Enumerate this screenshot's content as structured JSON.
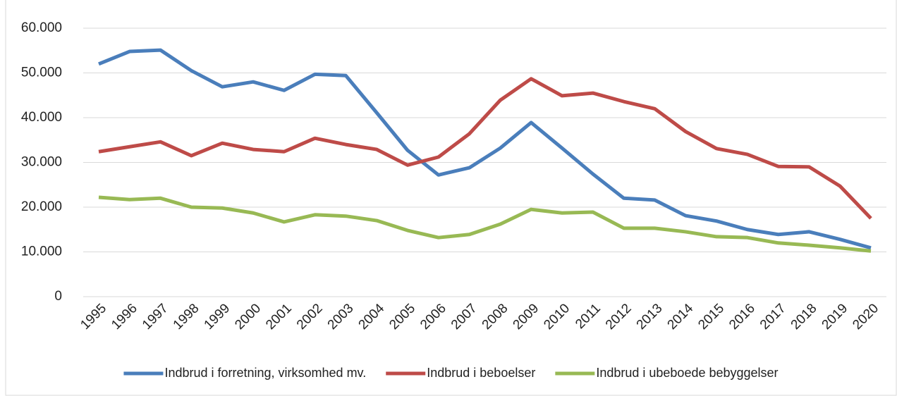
{
  "chart_data": {
    "type": "line",
    "x": [
      "1995",
      "1996",
      "1997",
      "1998",
      "1999",
      "2000",
      "2001",
      "2002",
      "2003",
      "2004",
      "2005",
      "2006",
      "2007",
      "2008",
      "2009",
      "2010",
      "2011",
      "2012",
      "2013",
      "2014",
      "2015",
      "2016",
      "2017",
      "2018",
      "2019",
      "2020"
    ],
    "series": [
      {
        "name": "Indbrud i forretning, virksomhed mv.",
        "color": "#4a7ebb",
        "values": [
          52000,
          54800,
          55100,
          50500,
          46900,
          48000,
          46100,
          49700,
          49400,
          41100,
          32700,
          27200,
          28800,
          33200,
          38900,
          33200,
          27400,
          22000,
          21600,
          18100,
          16900,
          15000,
          13900,
          14500,
          12800,
          10900
        ]
      },
      {
        "name": "Indbrud i beboelser",
        "color": "#be4b48",
        "values": [
          32400,
          33500,
          34600,
          31500,
          34300,
          32900,
          32400,
          35400,
          34000,
          32900,
          29400,
          31200,
          36400,
          43900,
          48700,
          44900,
          45500,
          43600,
          42000,
          36900,
          33100,
          31800,
          29100,
          29000,
          24700,
          17500
        ]
      },
      {
        "name": "Indbrud i ubeboede bebyggelser",
        "color": "#98b954",
        "values": [
          22200,
          21700,
          22000,
          20000,
          19800,
          18700,
          16700,
          18300,
          18000,
          17000,
          14800,
          13200,
          13900,
          16200,
          19500,
          18700,
          18900,
          15300,
          15300,
          14500,
          13400,
          13200,
          12000,
          11500,
          10900,
          10200
        ]
      }
    ],
    "ylim": [
      0,
      60000
    ],
    "yticks": [
      0,
      {
        "value": 10000,
        "label": "10.000"
      },
      {
        "value": 20000,
        "label": "20.000"
      },
      {
        "value": 30000,
        "label": "30.000"
      },
      {
        "value": 40000,
        "label": "40.000"
      },
      {
        "value": 50000,
        "label": "50.000"
      },
      {
        "value": 60000,
        "label": "60.000"
      }
    ],
    "grid": true,
    "legend": "bottom"
  }
}
